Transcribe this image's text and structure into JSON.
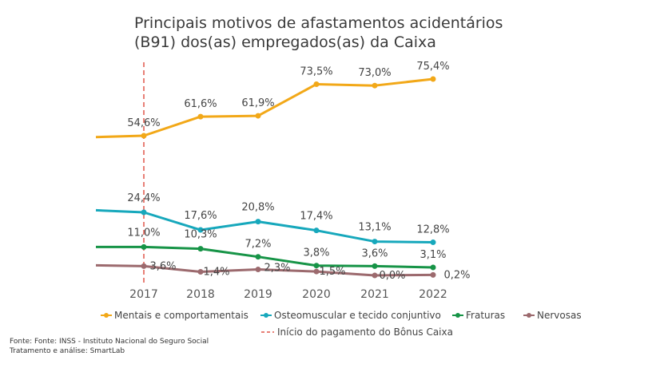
{
  "chart_data": {
    "type": "line",
    "title_line1": "Principais motivos de afastamentos acidentários",
    "title_line2": "(B91) dos(as) empregados(as) da Caixa",
    "x": [
      "2017",
      "2018",
      "2019",
      "2020",
      "2021",
      "2022"
    ],
    "series": [
      {
        "name": "Mentais e comportamentais",
        "values": [
          54.6,
          61.6,
          61.9,
          73.5,
          73.0,
          75.4
        ],
        "labels": [
          "54,6%",
          "61,6%",
          "61,9%",
          "73,5%",
          "73,0%",
          "75,4%"
        ],
        "color": "#f2a818"
      },
      {
        "name": "Osteomuscular e tecido conjuntivo",
        "values": [
          24.4,
          17.6,
          20.8,
          17.4,
          13.1,
          12.8
        ],
        "labels": [
          "24,4%",
          "17,6%",
          "20,8%",
          "17,4%",
          "13,1%",
          "12,8%"
        ],
        "color": "#17a8bc"
      },
      {
        "name": "Fraturas",
        "values": [
          11.0,
          10.3,
          7.2,
          3.8,
          3.6,
          3.1
        ],
        "labels": [
          "11,0%",
          "10,3%",
          "7,2%",
          "3,8%",
          "3,6%",
          "3,1%"
        ],
        "color": "#179447"
      },
      {
        "name": "Nervosas",
        "values": [
          3.6,
          1.4,
          2.3,
          1.5,
          0.0,
          0.2
        ],
        "labels": [
          "3,6%",
          "1,4%",
          "2,3%",
          "1,5%",
          "0,0%",
          "0,2%"
        ],
        "color": "#9c6a6e"
      }
    ],
    "reference_line": {
      "x": "2017",
      "label": "Início do pagamento do Bônus Caixa",
      "color": "#e0574a"
    },
    "source_line1": "Fonte: Fonte: INSS - Instituto Nacional do Seguro Social",
    "source_line2": "Tratamento e análise: SmartLab",
    "grid": false,
    "legend_position": "bottom"
  }
}
